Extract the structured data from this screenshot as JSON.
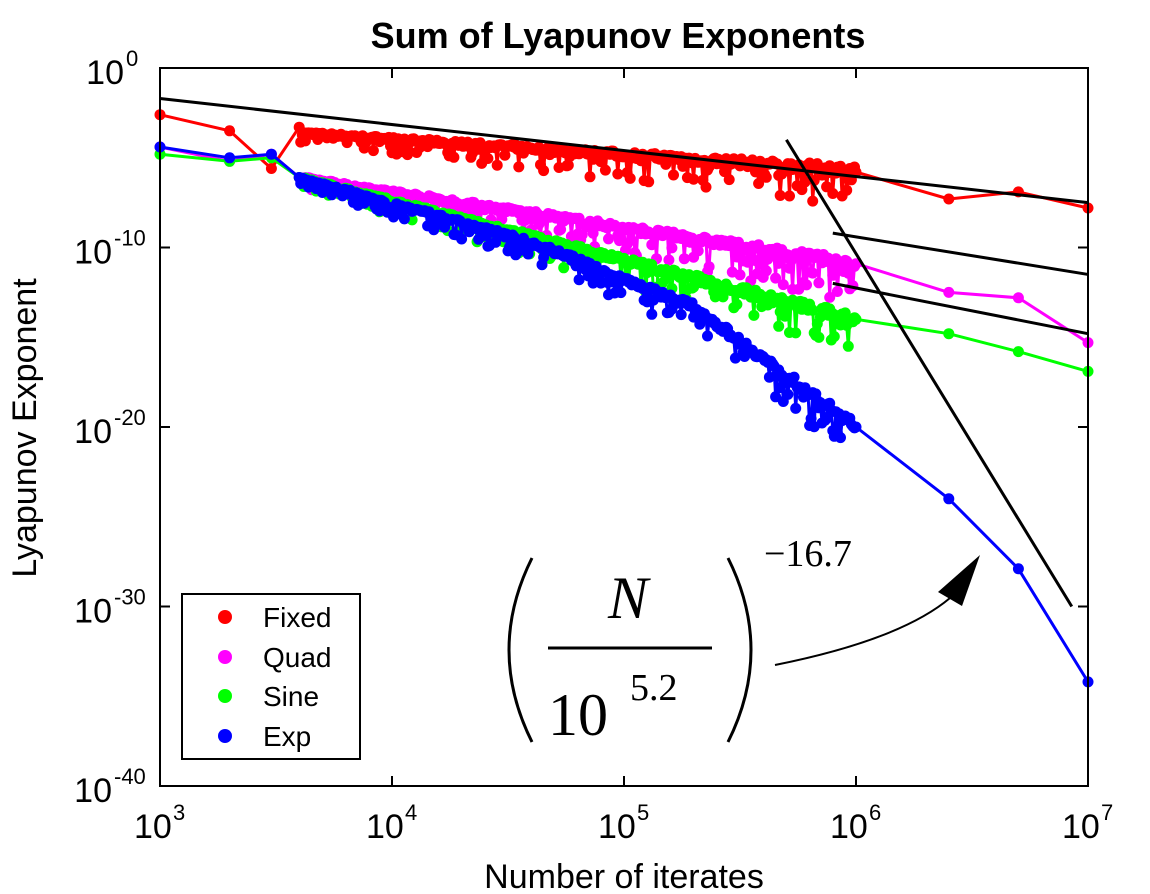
{
  "chart_data": {
    "type": "line",
    "title": "Sum of Lyapunov Exponents",
    "xlabel": "Number of iterates",
    "ylabel": "Lyapunov Exponent",
    "xscale": "log",
    "yscale": "log",
    "xlim_exp": [
      3,
      7
    ],
    "ylim_exp": [
      -40,
      0
    ],
    "x_ticks": [
      {
        "base": "10",
        "exp": "3",
        "value": 3
      },
      {
        "base": "10",
        "exp": "4",
        "value": 4
      },
      {
        "base": "10",
        "exp": "5",
        "value": 5
      },
      {
        "base": "10",
        "exp": "6",
        "value": 6
      },
      {
        "base": "10",
        "exp": "7",
        "value": 7
      }
    ],
    "y_ticks": [
      {
        "base": "10",
        "exp": "0",
        "value": 0
      },
      {
        "base": "10",
        "exp": "-10",
        "value": -10
      },
      {
        "base": "10",
        "exp": "-20",
        "value": -20
      },
      {
        "base": "10",
        "exp": "-30",
        "value": -30
      },
      {
        "base": "10",
        "exp": "-40",
        "value": -40
      }
    ],
    "legend_position": "bottom-left",
    "series": [
      {
        "name": "Fixed",
        "color": "#ff0000",
        "dense_trend": [
          [
            3.6,
            -3.6
          ],
          [
            6.0,
            -5.7
          ]
        ],
        "dense_amp": 1.6,
        "x_log": [
          3.0,
          3.3,
          3.48,
          3.6,
          6.0,
          6.4,
          6.7,
          7.0
        ],
        "y_log": [
          -2.6,
          -3.5,
          -5.6,
          -3.3,
          -5.8,
          -7.3,
          -6.9,
          -7.8
        ]
      },
      {
        "name": "Quad",
        "color": "#ff00ff",
        "dense_trend": [
          [
            3.6,
            -6.1
          ],
          [
            6.0,
            -10.9
          ]
        ],
        "dense_amp": 1.6,
        "x_log": [
          3.0,
          3.3,
          3.48,
          3.6,
          6.0,
          6.4,
          6.7,
          7.0
        ],
        "y_log": [
          -4.4,
          -5.2,
          -4.8,
          -6.1,
          -10.9,
          -12.5,
          -12.8,
          -15.3
        ]
      },
      {
        "name": "Sine",
        "color": "#00ff00",
        "dense_trend": [
          [
            3.6,
            -6.1
          ],
          [
            6.0,
            -14.0
          ]
        ],
        "dense_amp": 1.6,
        "x_log": [
          3.0,
          3.3,
          3.48,
          3.6,
          6.0,
          6.4,
          6.7,
          7.0
        ],
        "y_log": [
          -4.8,
          -5.2,
          -5.0,
          -6.1,
          -14.0,
          -14.8,
          -15.8,
          -16.9
        ]
      },
      {
        "name": "Exp",
        "color": "#0000ff",
        "dense_trend": [
          [
            3.6,
            -6.1
          ],
          [
            4.6,
            -9.7
          ],
          [
            5.3,
            -13.3
          ],
          [
            6.0,
            -20.0
          ]
        ],
        "dense_amp": 1.4,
        "x_log": [
          3.0,
          3.3,
          3.48,
          3.6,
          6.0,
          6.4,
          6.7,
          7.0
        ],
        "y_log": [
          -4.4,
          -5.0,
          -4.8,
          -6.1,
          -20.0,
          -24.0,
          -27.9,
          -34.2
        ]
      }
    ],
    "fit_lines": [
      {
        "x_log": [
          3.0,
          7.0
        ],
        "y_log": [
          -1.7,
          -7.5
        ]
      },
      {
        "x_log": [
          5.9,
          7.0
        ],
        "y_log": [
          -9.2,
          -11.5
        ]
      },
      {
        "x_log": [
          5.9,
          7.0
        ],
        "y_log": [
          -12.0,
          -14.8
        ]
      },
      {
        "x_log": [
          5.7,
          6.93
        ],
        "y_log": [
          -4.0,
          -30.0
        ]
      }
    ],
    "annotation": {
      "numerator": "N",
      "denominator_base": "10",
      "denominator_exp": "5.2",
      "exponent": "−16.7"
    }
  }
}
